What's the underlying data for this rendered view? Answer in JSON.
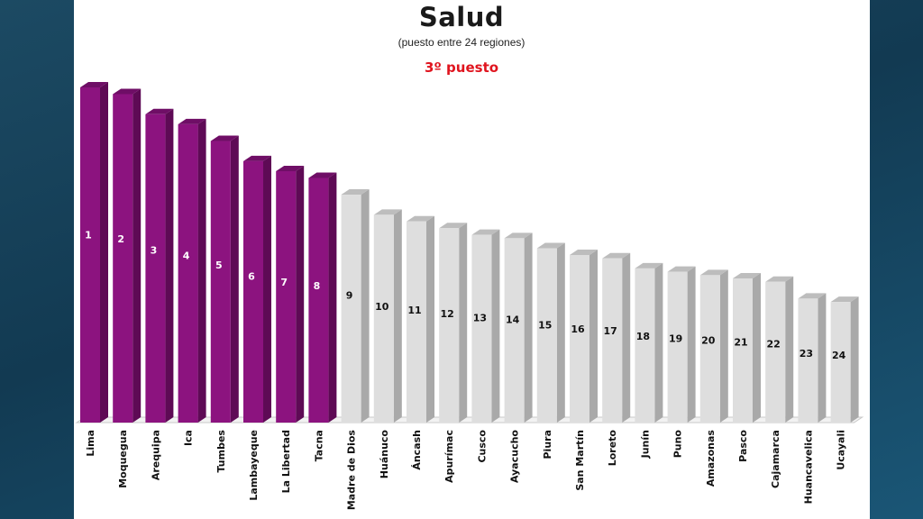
{
  "chart_data": {
    "type": "bar",
    "title": "Salud",
    "subtitle": "(puesto entre 24 regiones)",
    "highlight_text": "3º puesto",
    "categories": [
      "Lima",
      "Moquegua",
      "Arequipa",
      "Ica",
      "Tumbes",
      "Lambayeque",
      "La Libertad",
      "Tacna",
      "Madre de Dios",
      "Huánuco",
      "Áncash",
      "Apurímac",
      "Cusco",
      "Ayacucho",
      "Piura",
      "San Martín",
      "Loreto",
      "Junín",
      "Puno",
      "Amazonas",
      "Pasco",
      "Cajamarca",
      "Huancavelica",
      "Ucayali"
    ],
    "values": [
      100,
      98,
      92,
      89,
      84,
      78,
      75,
      73,
      68,
      62,
      60,
      58,
      56,
      55,
      52,
      50,
      49,
      46,
      45,
      44,
      43,
      42,
      37,
      36
    ],
    "bar_labels": [
      "1",
      "2",
      "3",
      "4",
      "5",
      "6",
      "7",
      "8",
      "9",
      "10",
      "11",
      "12",
      "13",
      "14",
      "15",
      "16",
      "17",
      "18",
      "19",
      "20",
      "21",
      "22",
      "23",
      "24"
    ],
    "highlight_count": 8,
    "colors": {
      "highlight_front": "#8c137f",
      "highlight_side": "#5e0a55",
      "highlight_top": "#6f0e66",
      "normal_front": "#dedede",
      "normal_side": "#a9a9a9",
      "normal_top": "#bdbdbd",
      "rank_text": "#e0141e"
    },
    "grid": false,
    "legend": "none"
  }
}
